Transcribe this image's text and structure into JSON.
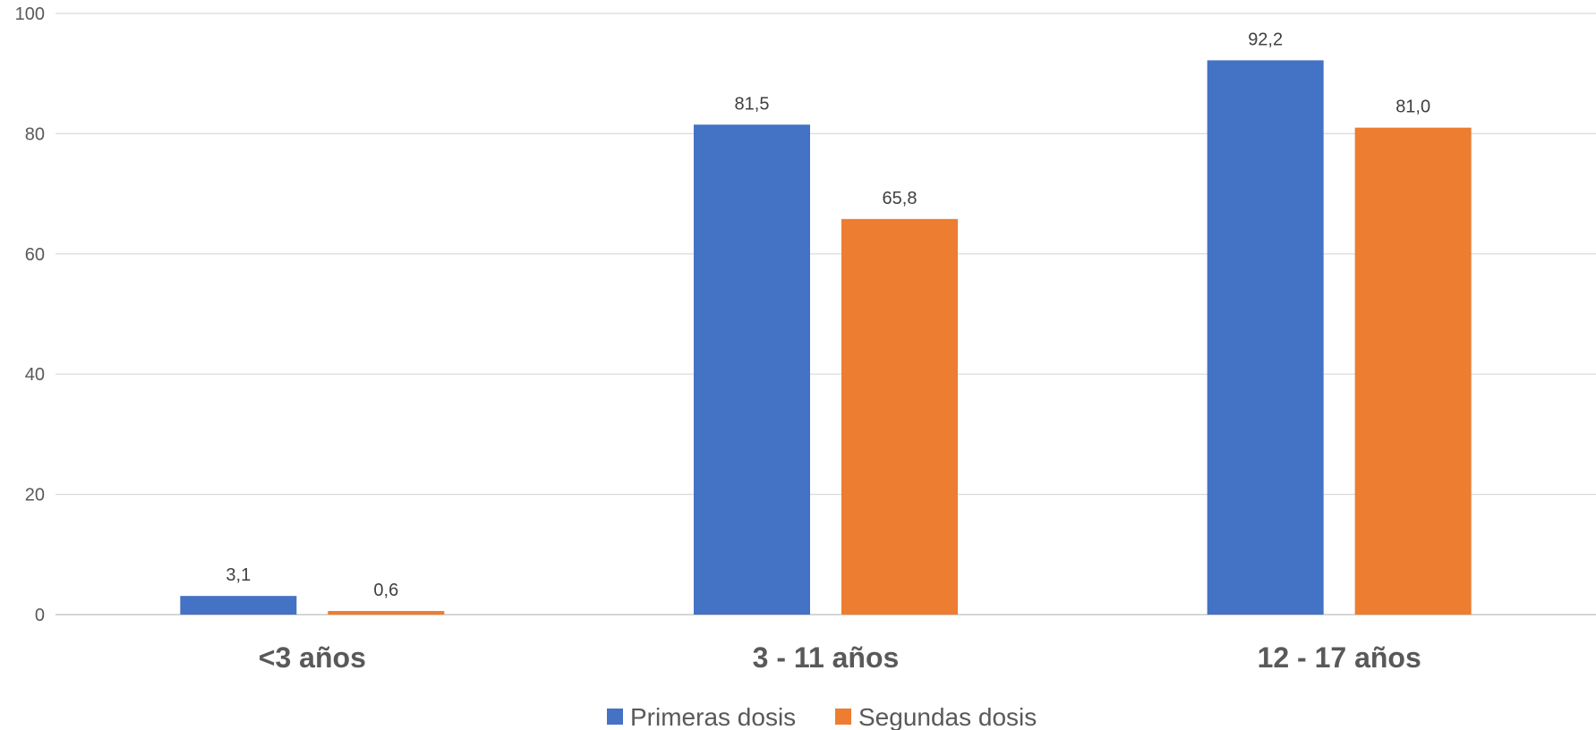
{
  "chart_data": {
    "type": "bar",
    "title": "",
    "xlabel": "",
    "ylabel": "",
    "categories": [
      "<3 años",
      "3 - 11 años",
      "12 - 17 años"
    ],
    "series": [
      {
        "name": "Primeras dosis",
        "values": [
          3.1,
          81.5,
          92.2
        ],
        "labels": [
          "3,1",
          "81,5",
          "92,2"
        ],
        "color": "#4472C4"
      },
      {
        "name": "Segundas dosis",
        "values": [
          0.6,
          65.8,
          81.0
        ],
        "labels": [
          "0,6",
          "65,8",
          "81,0"
        ],
        "color": "#ED7D31"
      }
    ],
    "ylim": [
      0,
      100
    ],
    "yticks": [
      0,
      20,
      40,
      60,
      80,
      100
    ],
    "grid": true,
    "legend": "bottom-center"
  }
}
